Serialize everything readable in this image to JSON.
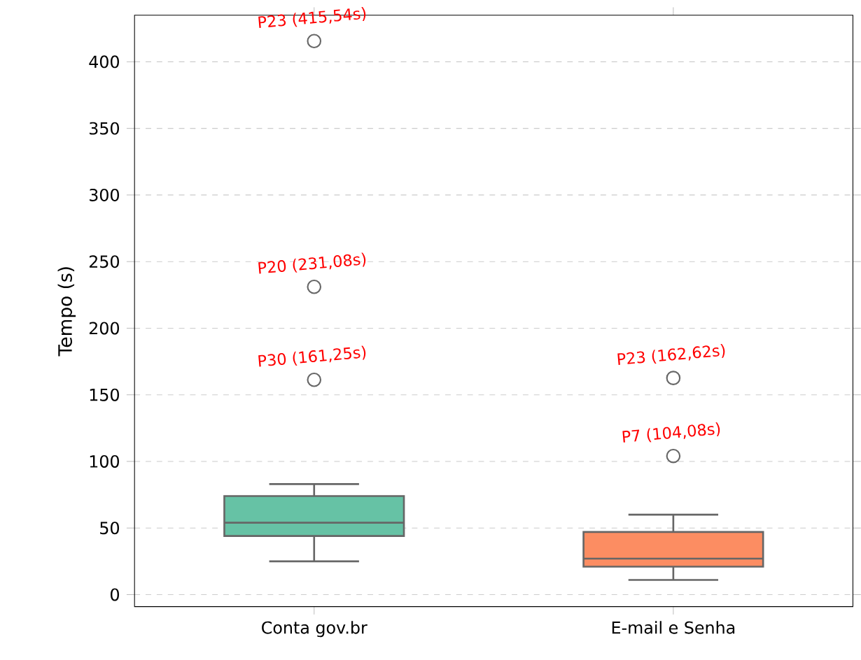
{
  "chart_data": {
    "type": "box",
    "ylabel": "Tempo (s)",
    "categories": [
      "Conta gov.br",
      "E-mail e Senha"
    ],
    "boxes": [
      {
        "low": 25,
        "q1": 44,
        "median": 54,
        "q3": 74,
        "high": 83,
        "outliers": [
          415.54,
          231.08,
          161.25
        ]
      },
      {
        "low": 11,
        "q1": 21,
        "median": 27,
        "q3": 47,
        "high": 60,
        "outliers": [
          162.62,
          104.08
        ]
      }
    ],
    "colors": [
      "#66c2a5",
      "#fc8d62"
    ],
    "ylim": [
      -9,
      435
    ],
    "yticks": [
      0,
      50,
      100,
      150,
      200,
      250,
      300,
      350,
      400
    ],
    "grid": "y",
    "marker": "circle",
    "annotations": [
      "P23 (415,54s)",
      "P20 (231,08s)",
      "P30 (161,25s)",
      "P23 (162,62s)",
      "P7 (104,08s)"
    ]
  }
}
